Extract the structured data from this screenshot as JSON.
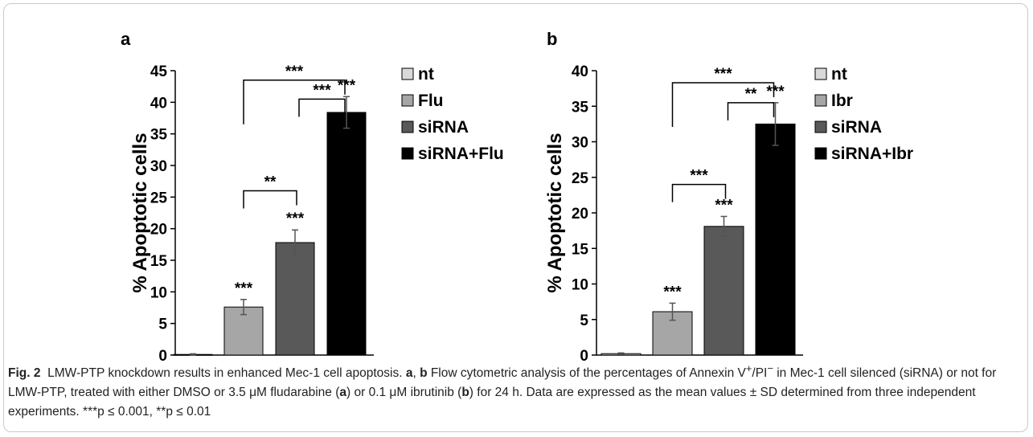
{
  "chart_data": [
    {
      "panel": "a",
      "type": "bar",
      "ylabel": "% Apoptotic cells",
      "ylim": [
        0,
        45
      ],
      "yticks": [
        0,
        5,
        10,
        15,
        20,
        25,
        30,
        35,
        40,
        45
      ],
      "categories": [
        "nt",
        "Flu",
        "siRNA",
        "siRNA+Flu"
      ],
      "values": [
        0.1,
        7.6,
        17.8,
        38.4
      ],
      "errors": [
        0.1,
        1.2,
        2.0,
        2.5
      ],
      "colors": [
        "#d9d9d9",
        "#a6a6a6",
        "#595959",
        "#000000"
      ],
      "bar_stars": [
        "",
        "***",
        "***",
        "***"
      ],
      "brackets": [
        {
          "from": 1,
          "to": 3,
          "label": "***",
          "y": 43.5
        },
        {
          "from": 2,
          "to": 3,
          "label": "***",
          "y": 40.5
        },
        {
          "from": 1,
          "to": 2,
          "label": "**",
          "y": 26.0
        }
      ],
      "legend": [
        "nt",
        "Flu",
        "siRNA",
        "siRNA+Flu"
      ]
    },
    {
      "panel": "b",
      "type": "bar",
      "ylabel": "% Apoptotic cells",
      "ylim": [
        0,
        40
      ],
      "yticks": [
        0,
        5,
        10,
        15,
        20,
        25,
        30,
        35,
        40
      ],
      "categories": [
        "nt",
        "Ibr",
        "siRNA",
        "siRNA+Ibr"
      ],
      "values": [
        0.2,
        6.1,
        18.1,
        32.5
      ],
      "errors": [
        0.1,
        1.2,
        1.4,
        3.0
      ],
      "colors": [
        "#d9d9d9",
        "#a6a6a6",
        "#595959",
        "#000000"
      ],
      "bar_stars": [
        "",
        "***",
        "***",
        "***"
      ],
      "brackets": [
        {
          "from": 1,
          "to": 3,
          "label": "***",
          "y": 38.3
        },
        {
          "from": 2,
          "to": 3,
          "label": "**",
          "y": 35.5
        },
        {
          "from": 1,
          "to": 2,
          "label": "***",
          "y": 24.0
        }
      ],
      "legend": [
        "nt",
        "Ibr",
        "siRNA",
        "siRNA+Ibr"
      ]
    }
  ],
  "caption": {
    "fig_label": "Fig. 2",
    "title": "LMW-PTP knockdown results in enhanced Mec-1 cell apoptosis.",
    "panel_a": "a",
    "panel_b": "b",
    "t1": "Flow cytometric analysis of the percentages of Annexin V",
    "sup1": "+",
    "t2": "/PI",
    "sup2": "−",
    "t3": " in Mec-1 cell silenced (siRNA) or not for LMW-PTP, treated with either DMSO or 3.5 μM fludarabine (",
    "t4": ") or 0.1 μM ibrutinib (",
    "t5": ") for 24 h. Data are expressed as the mean values ± SD determined from three independent experiments. ***p ≤ 0.001, **p ≤ 0.01"
  }
}
